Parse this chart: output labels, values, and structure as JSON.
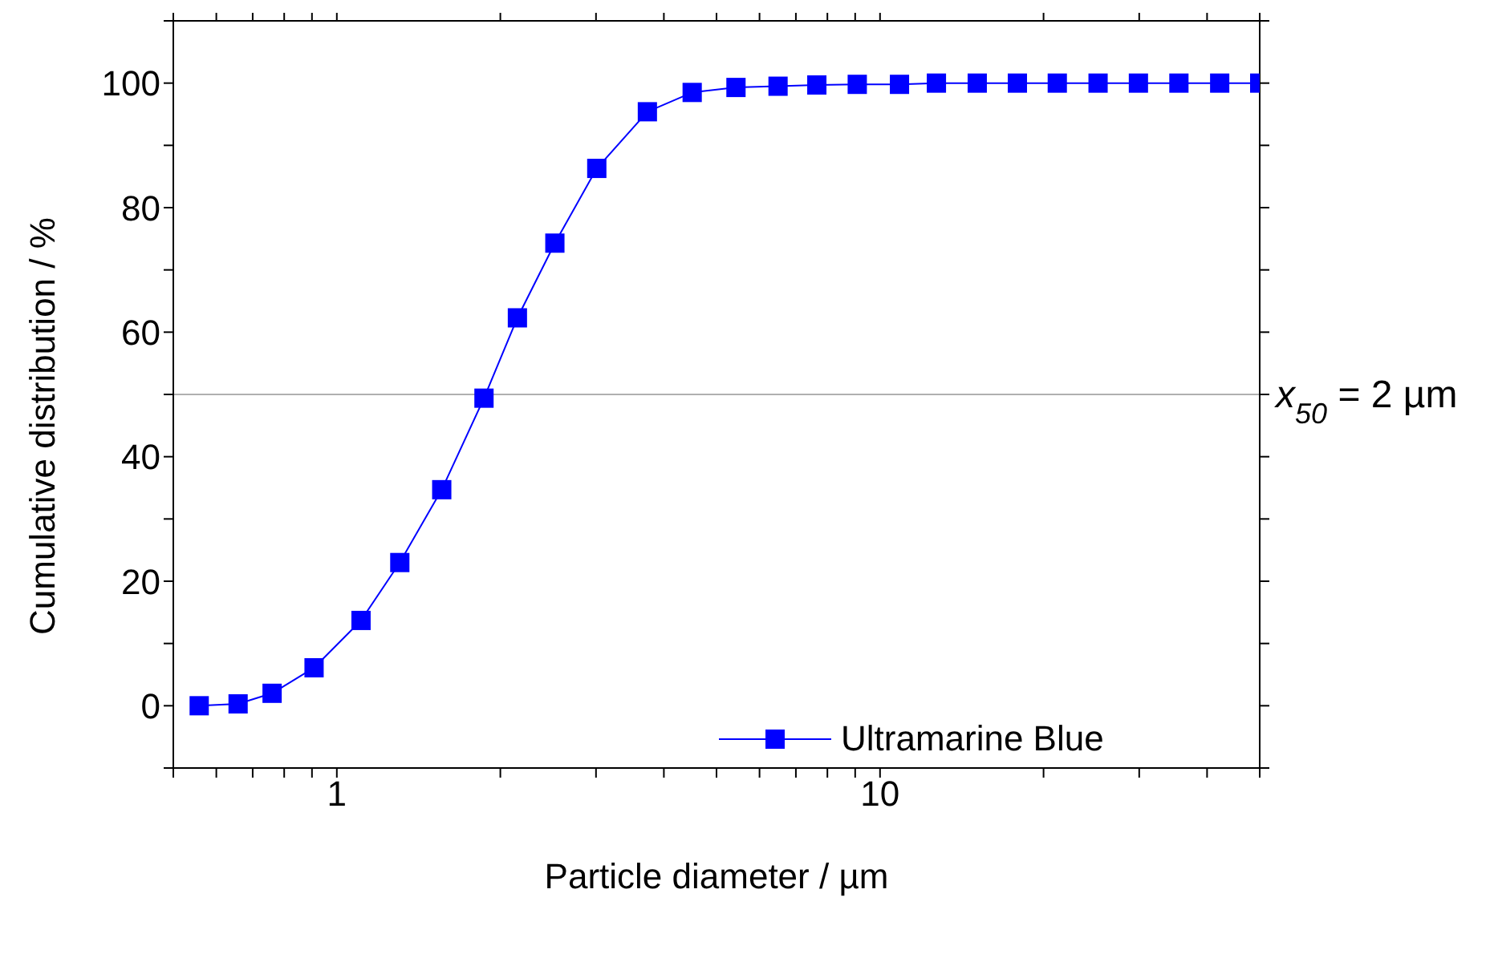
{
  "chart_data": {
    "type": "line",
    "xlabel": "Particle diameter / µm",
    "ylabel": "Cumulative distribution / %",
    "x": [
      0.558,
      0.658,
      0.76,
      0.908,
      1.108,
      1.306,
      1.56,
      1.866,
      2.15,
      2.52,
      3.01,
      3.73,
      4.51,
      5.43,
      6.49,
      7.65,
      9.08,
      10.86,
      12.7,
      15.1,
      17.9,
      21.2,
      25.2,
      29.9,
      35.5,
      42.2,
      50
    ],
    "series": [
      {
        "name": "Ultramarine Blue",
        "color": "#0000ff",
        "values": [
          0,
          0.3,
          2,
          6.1,
          13.7,
          23,
          34.7,
          49.4,
          62.3,
          74.3,
          86.3,
          95.4,
          98.5,
          99.3,
          99.5,
          99.7,
          99.8,
          99.8,
          100,
          100,
          100,
          100,
          100,
          100,
          100,
          100,
          100
        ]
      }
    ],
    "log": "x",
    "xlim": [
      0.5,
      50
    ],
    "xticks": [
      {
        "value": 0.5,
        "label": null
      },
      {
        "value": 0.6,
        "label": null
      },
      {
        "value": 0.7,
        "label": null
      },
      {
        "value": 0.8,
        "label": null
      },
      {
        "value": 0.9,
        "label": null
      },
      1,
      {
        "value": 2,
        "label": null
      },
      {
        "value": 3,
        "label": null
      },
      {
        "value": 4,
        "label": null
      },
      {
        "value": 5,
        "label": null
      },
      {
        "value": 6,
        "label": null
      },
      {
        "value": 7,
        "label": null
      },
      {
        "value": 8,
        "label": null
      },
      {
        "value": 9,
        "label": null
      },
      10,
      {
        "value": 20,
        "label": null
      },
      {
        "value": 30,
        "label": null
      },
      {
        "value": 40,
        "label": null
      },
      {
        "value": 50,
        "label": null
      }
    ],
    "ylim": [
      -10,
      110
    ],
    "yticks": [
      {
        "value": -10,
        "label": null
      },
      0,
      {
        "value": 10,
        "label": null
      },
      20,
      {
        "value": 30,
        "label": null
      },
      40,
      {
        "value": 50,
        "label": null
      },
      60,
      {
        "value": 70,
        "label": null
      },
      80,
      {
        "value": 90,
        "label": null
      },
      100,
      {
        "value": 110,
        "label": null
      }
    ],
    "ref_lines": [
      {
        "axis": "y",
        "value": 50,
        "label": "$_{}$x$_{50}$ = 2 µm",
        "color": "#b0b0b0"
      }
    ],
    "marker": "square",
    "line_style": "solid",
    "legend": "bottom right",
    "grid": false
  }
}
